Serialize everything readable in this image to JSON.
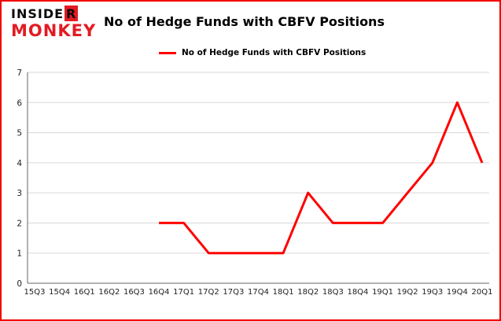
{
  "page": {
    "background": "#ffffff",
    "border_color": "#f20000"
  },
  "logo": {
    "line1_prefix": "INSIDE",
    "line1_suffix": "R",
    "line2": "MONKEY",
    "red": "#e31b23"
  },
  "header": {
    "title": "No of Hedge Funds with CBFV Positions"
  },
  "legend": {
    "label": "No of Hedge Funds with CBFV Positions",
    "line_color": "#ff0000"
  },
  "chart_data": {
    "type": "line",
    "title": "No of Hedge Funds with CBFV Positions",
    "xlabel": "",
    "ylabel": "",
    "categories": [
      "15Q3",
      "15Q4",
      "16Q1",
      "16Q2",
      "16Q3",
      "16Q4",
      "17Q1",
      "17Q2",
      "17Q3",
      "17Q4",
      "18Q1",
      "18Q2",
      "18Q3",
      "18Q4",
      "19Q1",
      "19Q2",
      "19Q3",
      "19Q4",
      "20Q1"
    ],
    "series": [
      {
        "name": "No of Hedge Funds with CBFV Positions",
        "color": "#ff0000",
        "values": [
          null,
          null,
          null,
          null,
          null,
          2,
          2,
          1,
          1,
          1,
          1,
          3,
          2,
          2,
          2,
          3,
          4,
          6,
          4
        ]
      }
    ],
    "ylim": [
      0,
      7
    ],
    "yticks": [
      0,
      1,
      2,
      3,
      4,
      5,
      6,
      7
    ],
    "grid": true,
    "gridline_color": "#d7d7d7",
    "axis_color": "#666666",
    "tick_label_color": "#222222",
    "legend_position": "top"
  }
}
